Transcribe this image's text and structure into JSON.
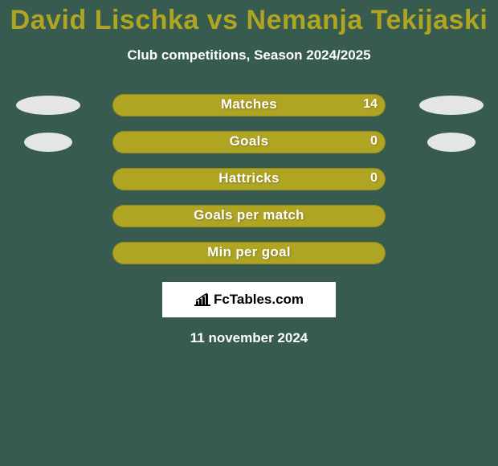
{
  "background_color": "#385b4f",
  "title": {
    "text": "David Lischka vs Nemanja Tekijaski",
    "color": "#b0a423",
    "font_size": 34,
    "font_weight": 900
  },
  "subtitle": {
    "text": "Club competitions, Season 2024/2025",
    "color": "#ffffff",
    "font_size": 17
  },
  "chart": {
    "type": "horizontal-bar-comparison",
    "bar_color": "#b0a423",
    "bar_border_radius": 14,
    "label_color": "#ffffff",
    "value_color": "#ffffff",
    "ellipse_left_color": "#e3e6e5",
    "ellipse_right_color": "#e3e6e5",
    "rows": [
      {
        "label": "Matches",
        "value_right": "14",
        "ellipse_left_width": 80,
        "ellipse_right_width": 80,
        "show_ellipses": true
      },
      {
        "label": "Goals",
        "value_right": "0",
        "ellipse_left_width": 60,
        "ellipse_right_width": 60,
        "show_ellipses": true
      },
      {
        "label": "Hattricks",
        "value_right": "0",
        "ellipse_left_width": 0,
        "ellipse_right_width": 0,
        "show_ellipses": false
      },
      {
        "label": "Goals per match",
        "value_right": "",
        "ellipse_left_width": 0,
        "ellipse_right_width": 0,
        "show_ellipses": false
      },
      {
        "label": "Min per goal",
        "value_right": "",
        "ellipse_left_width": 0,
        "ellipse_right_width": 0,
        "show_ellipses": false
      }
    ]
  },
  "footer": {
    "logo_text": "FcTables.com",
    "logo_bg": "#ffffff",
    "logo_text_color": "#000000",
    "date": "11 november 2024",
    "date_color": "#ffffff"
  }
}
